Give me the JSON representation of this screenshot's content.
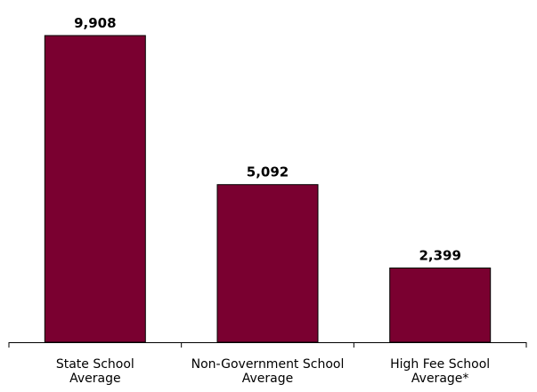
{
  "chart_data": {
    "type": "bar",
    "title": "",
    "xlabel": "",
    "ylabel": "",
    "categories": [
      [
        "State School",
        "Average"
      ],
      [
        "Non-Government School",
        "Average"
      ],
      [
        "High Fee School",
        "Average*"
      ]
    ],
    "values": [
      9908,
      5092,
      2399
    ],
    "value_labels": [
      "9,908",
      "5,092",
      "2,399"
    ],
    "ylim": [
      0,
      10500
    ],
    "bar_color": "#7a0030",
    "grid": false,
    "legend": "none"
  }
}
